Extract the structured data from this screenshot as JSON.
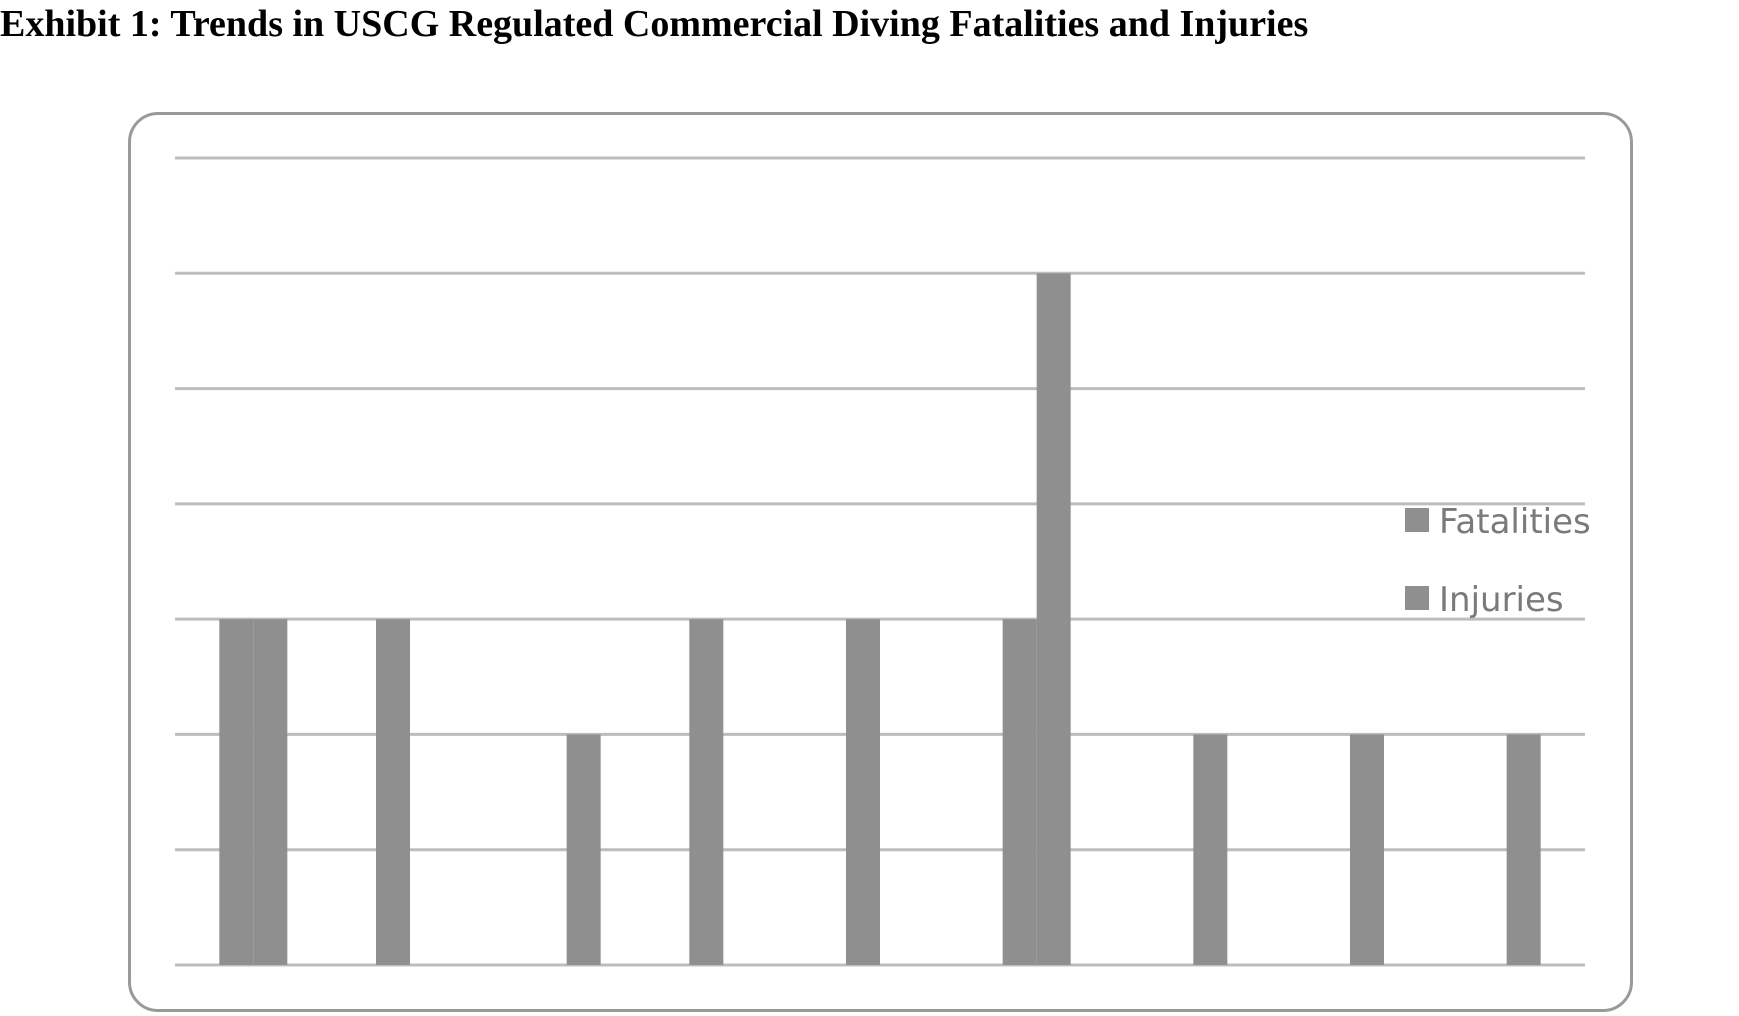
{
  "title": "Exhibit 1:  Trends in USCG Regulated Commercial Diving Fatalities and Injuries",
  "chart_data": {
    "type": "bar",
    "title": "",
    "xlabel": "",
    "ylabel": "",
    "ylim": [
      0,
      7
    ],
    "grid": true,
    "legend_position": "right",
    "colors": {
      "bar": "#8f8f8f",
      "grid": "#bdbdbd",
      "frame": "#9a9a9a"
    },
    "series": [
      {
        "name": "Fatalities",
        "values": [
          3,
          3,
          0,
          3,
          3,
          3,
          0,
          0,
          0
        ]
      },
      {
        "name": "Injuries",
        "values": [
          3,
          0,
          2,
          0,
          0,
          6,
          2,
          2,
          2
        ]
      }
    ]
  }
}
